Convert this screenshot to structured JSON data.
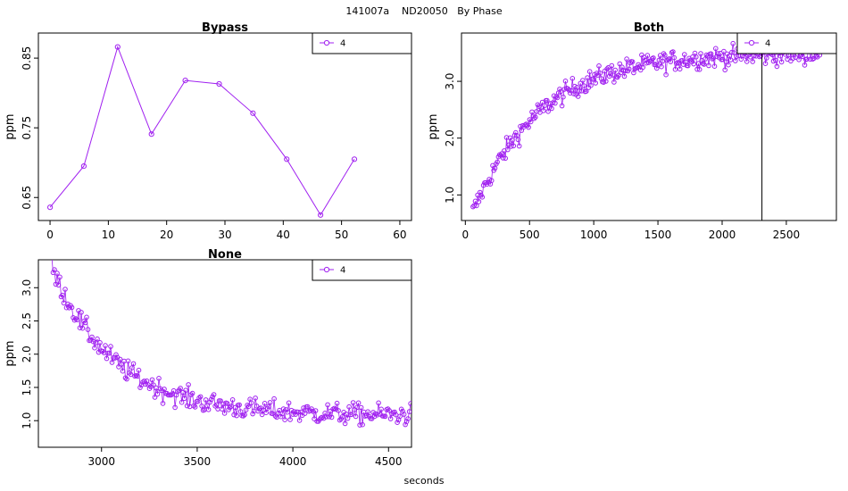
{
  "page": {
    "title": "141007a    ND20050   By Phase",
    "xlabel": "seconds"
  },
  "colors": {
    "series": "#a020f0",
    "axis": "#000000",
    "background": "#ffffff"
  },
  "chart_data": [
    {
      "type": "line",
      "title": "Bypass",
      "ylabel": "ppm",
      "xlim": [
        -2,
        62
      ],
      "ylim": [
        0.617,
        0.886
      ],
      "xticks": [
        0,
        10,
        20,
        30,
        40,
        50,
        60
      ],
      "yticks": [
        0.65,
        0.75,
        0.85
      ],
      "legend": {
        "position": "top-right",
        "entries": [
          "4"
        ]
      },
      "series": [
        {
          "name": "4",
          "x": [
            0,
            5.8,
            11.6,
            17.4,
            23.2,
            29.0,
            34.8,
            40.6,
            46.4,
            52.2
          ],
          "y": [
            0.636,
            0.695,
            0.866,
            0.741,
            0.818,
            0.813,
            0.771,
            0.705,
            0.625,
            0.705
          ]
        }
      ]
    },
    {
      "type": "scatter",
      "title": "Both",
      "ylabel": "ppm",
      "xlim": [
        -30,
        2890
      ],
      "ylim": [
        0.55,
        3.85
      ],
      "xticks": [
        0,
        500,
        1000,
        1500,
        2000,
        2500
      ],
      "yticks": [
        1.0,
        2.0,
        3.0
      ],
      "vline": 2310,
      "legend": {
        "position": "top-right",
        "entries": [
          "4"
        ]
      },
      "series": [
        {
          "name": "4",
          "x_start": 60,
          "x_end": 2760,
          "x_step": 9,
          "model": {
            "kind": "saturating",
            "base": 0.7,
            "plateau": 3.5,
            "tau": 520,
            "noise": 0.09
          }
        }
      ]
    },
    {
      "type": "scatter",
      "title": "None",
      "ylabel": "ppm",
      "xlim": [
        2670,
        4620
      ],
      "ylim": [
        0.6,
        3.42
      ],
      "xticks": [
        3000,
        3500,
        4000,
        4500
      ],
      "yticks": [
        1.0,
        1.5,
        2.0,
        2.5,
        3.0
      ],
      "legend": {
        "position": "top-right",
        "entries": [
          "4"
        ]
      },
      "series": [
        {
          "name": "4",
          "x_start": 2740,
          "x_end": 4620,
          "x_step": 7,
          "model": {
            "kind": "decay",
            "start": 3.3,
            "floor": 1.08,
            "tau": 330,
            "noise": 0.08
          }
        }
      ]
    }
  ]
}
